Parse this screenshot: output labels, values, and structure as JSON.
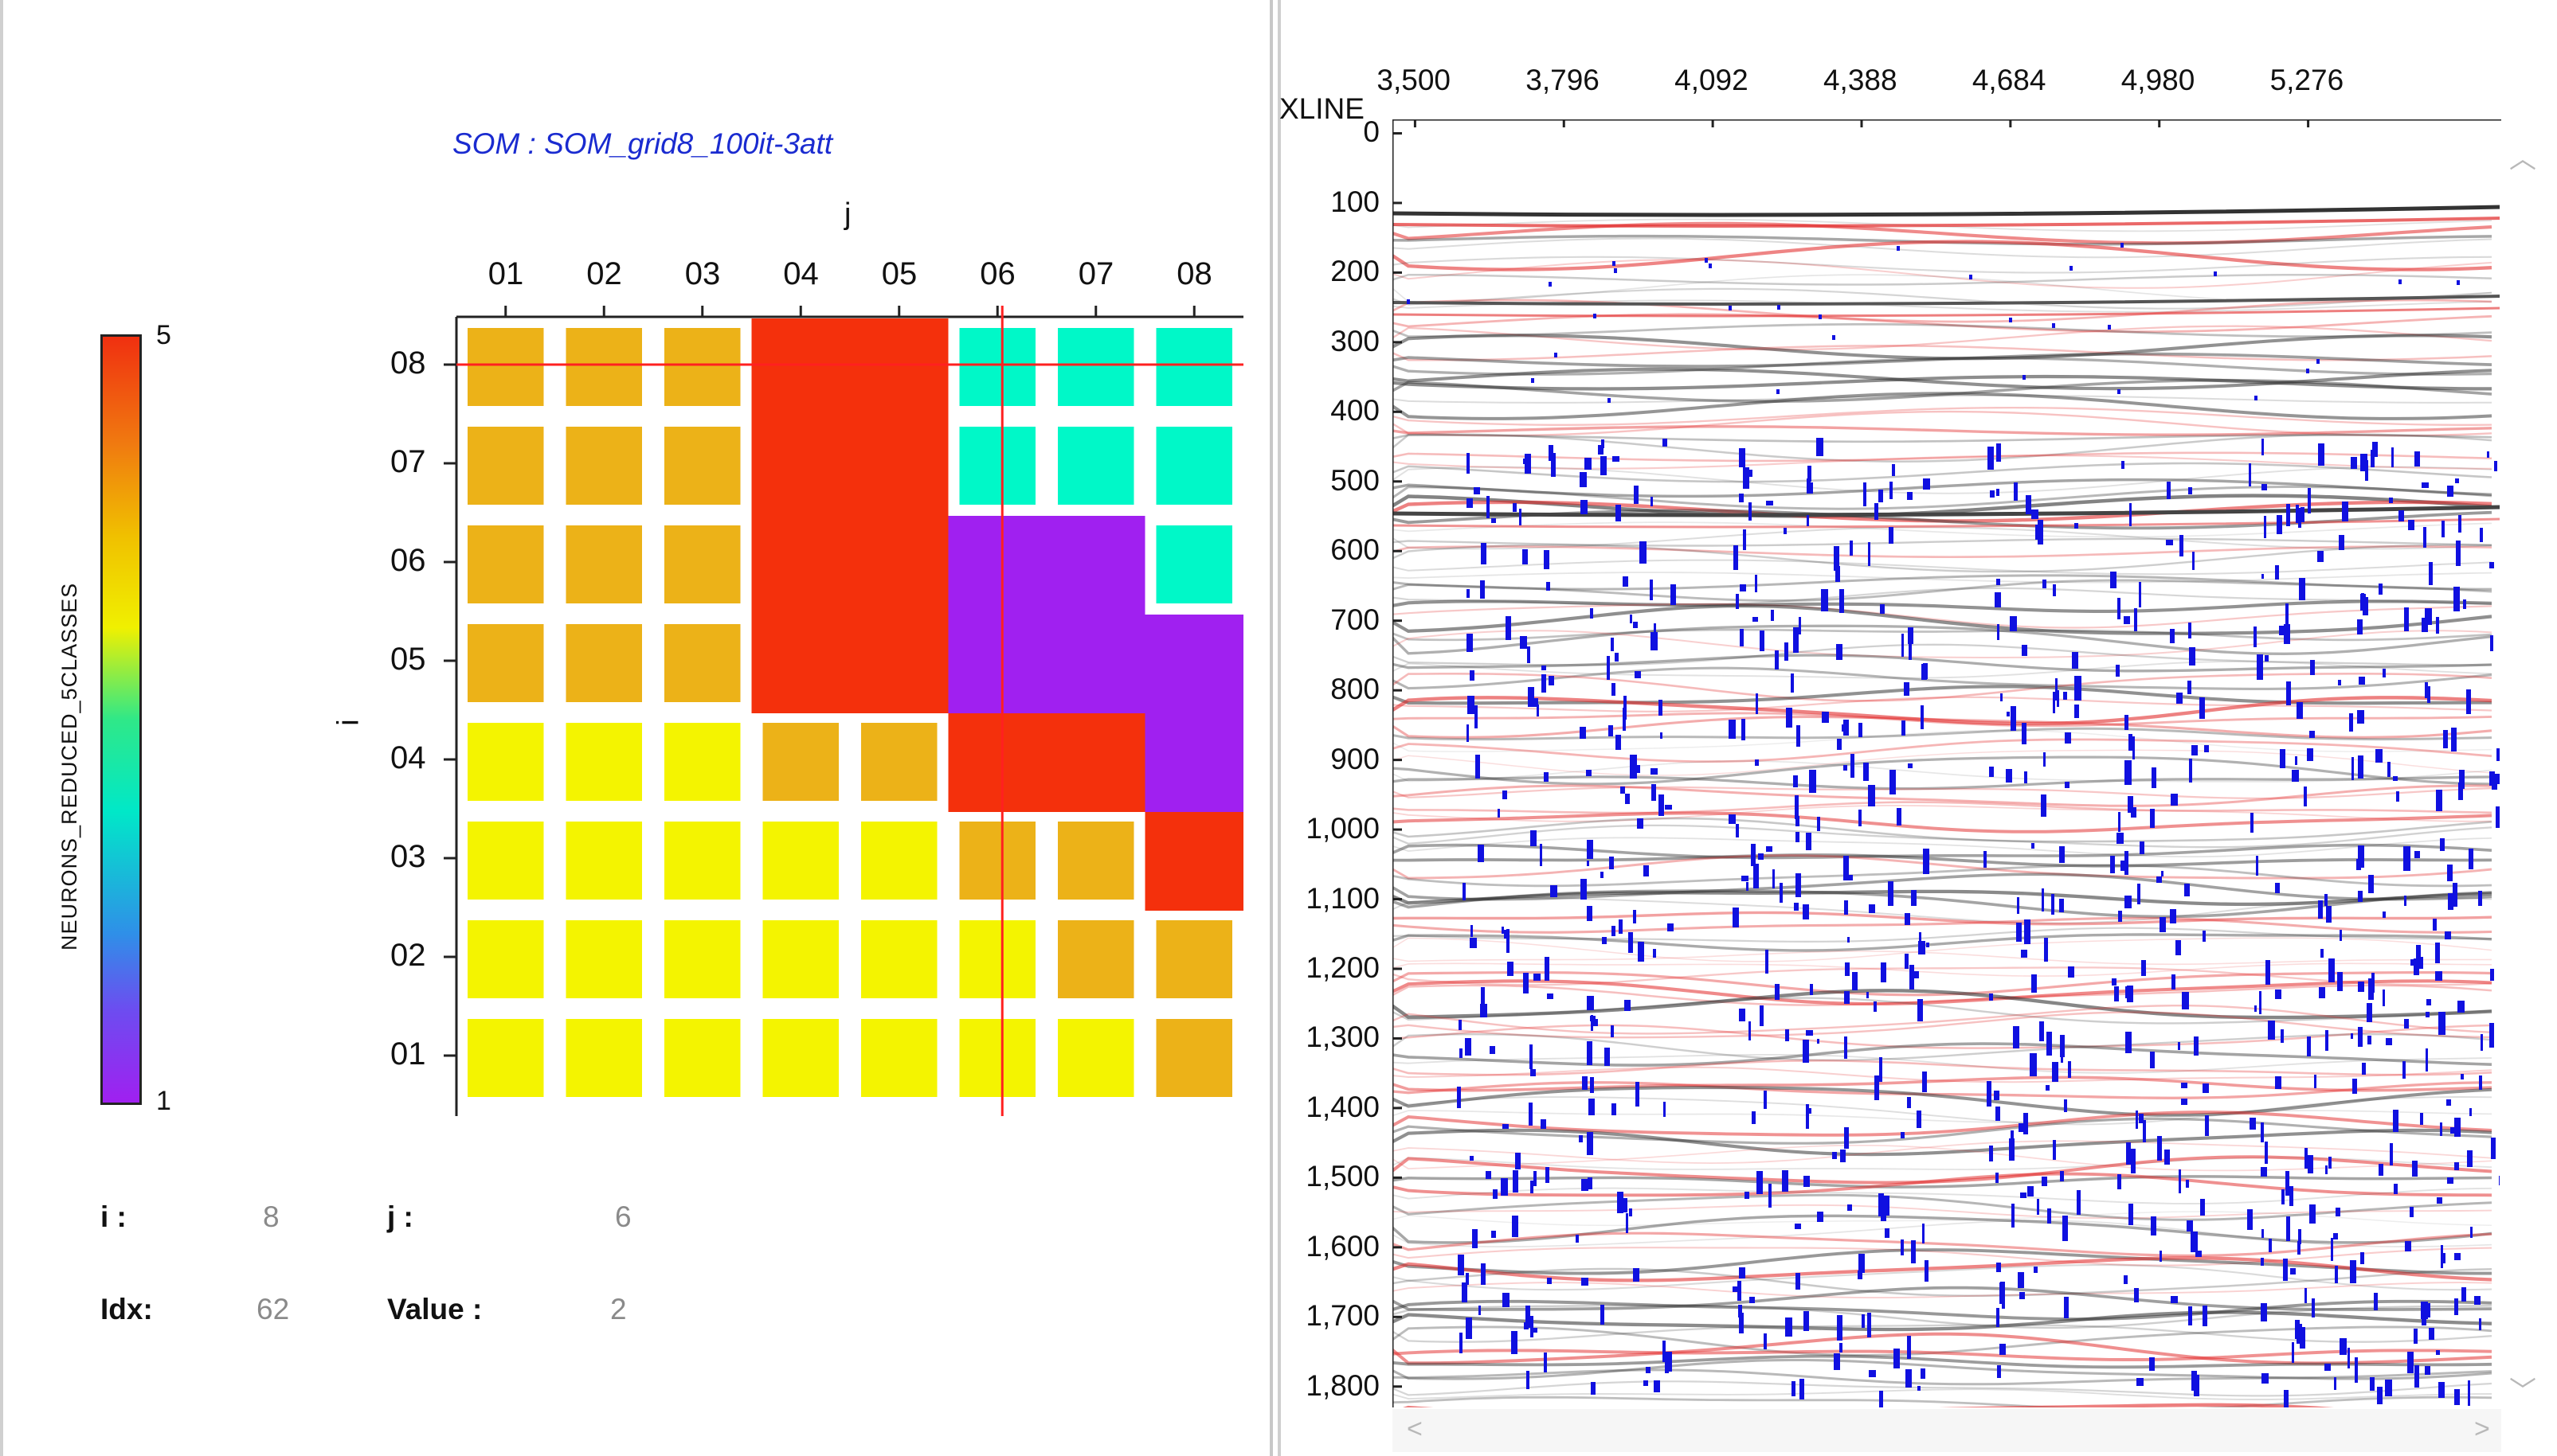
{
  "colorbar": {
    "title": "NEURONS_REDUCED_5CLASSES",
    "max_label": "5",
    "min_label": "1"
  },
  "som": {
    "title": "SOM : SOM_grid8_100it-3att",
    "j_axis_label": "j",
    "i_axis_label": "i",
    "columns": [
      "01",
      "02",
      "03",
      "04",
      "05",
      "06",
      "07",
      "08"
    ],
    "rows": [
      "08",
      "07",
      "06",
      "05",
      "04",
      "03",
      "02",
      "01"
    ],
    "class_colors": {
      "1": "#a020f0",
      "2": "#00f8c8",
      "3": "#f4f400",
      "4": "#ecb218",
      "5": "#f4300c"
    },
    "grid_classes": [
      [
        4,
        4,
        4,
        5,
        5,
        2,
        2,
        2
      ],
      [
        4,
        4,
        4,
        5,
        5,
        2,
        2,
        2
      ],
      [
        4,
        4,
        4,
        5,
        5,
        1,
        1,
        2
      ],
      [
        4,
        4,
        4,
        5,
        5,
        1,
        1,
        1
      ],
      [
        3,
        3,
        3,
        4,
        4,
        5,
        5,
        1
      ],
      [
        3,
        3,
        3,
        3,
        3,
        4,
        4,
        5
      ],
      [
        3,
        3,
        3,
        3,
        3,
        3,
        4,
        4
      ],
      [
        3,
        3,
        3,
        3,
        3,
        3,
        3,
        4
      ]
    ],
    "selected": {
      "row": "08",
      "col": "06"
    },
    "crosshair_color": "#ff2020"
  },
  "info": {
    "i_label": "i :",
    "i_value": "8",
    "j_label": "j :",
    "j_value": "6",
    "idx_label": "Idx:",
    "idx_value": "62",
    "value_label": "Value :",
    "value_value": "2"
  },
  "seismic": {
    "x_axis_title": "XLINE",
    "x_ticks": [
      "3,500",
      "3,796",
      "4,092",
      "4,388",
      "4,684",
      "4,980",
      "5,276"
    ],
    "y_ticks": [
      "0",
      "100",
      "200",
      "300",
      "400",
      "500",
      "600",
      "700",
      "800",
      "900",
      "1,000",
      "1,100",
      "1,200",
      "1,300",
      "1,400",
      "1,500",
      "1,600",
      "1,700",
      "1,800"
    ],
    "overlay_color": "#1010e0"
  },
  "scrollbars": {
    "up": "︿",
    "down": "﹀",
    "left": "<",
    "right": ">"
  }
}
